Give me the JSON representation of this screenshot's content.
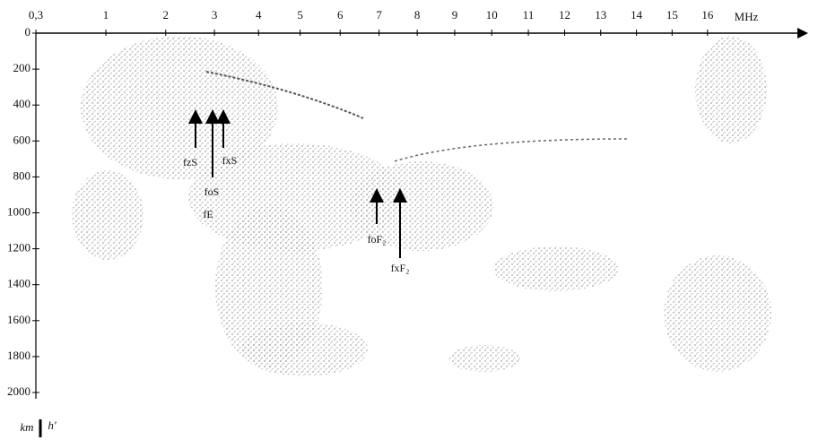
{
  "chart_data": {
    "type": "ionogram",
    "x_label": "MHz",
    "y_label": "h'",
    "y_unit": "km",
    "xticks": [
      {
        "value": 0.3,
        "label": "0,3"
      },
      1,
      2,
      3,
      4,
      5,
      6,
      7,
      8,
      9,
      10,
      11,
      12,
      13,
      14,
      15,
      16
    ],
    "ylim": [
      0,
      2000
    ],
    "yticks": [
      0,
      200,
      400,
      600,
      800,
      1000,
      1200,
      1400,
      1600,
      1800,
      2000
    ],
    "annotations": [
      "fzS",
      "fxS",
      "foS",
      "fE",
      "foF₂",
      "fxF₂"
    ]
  }
}
